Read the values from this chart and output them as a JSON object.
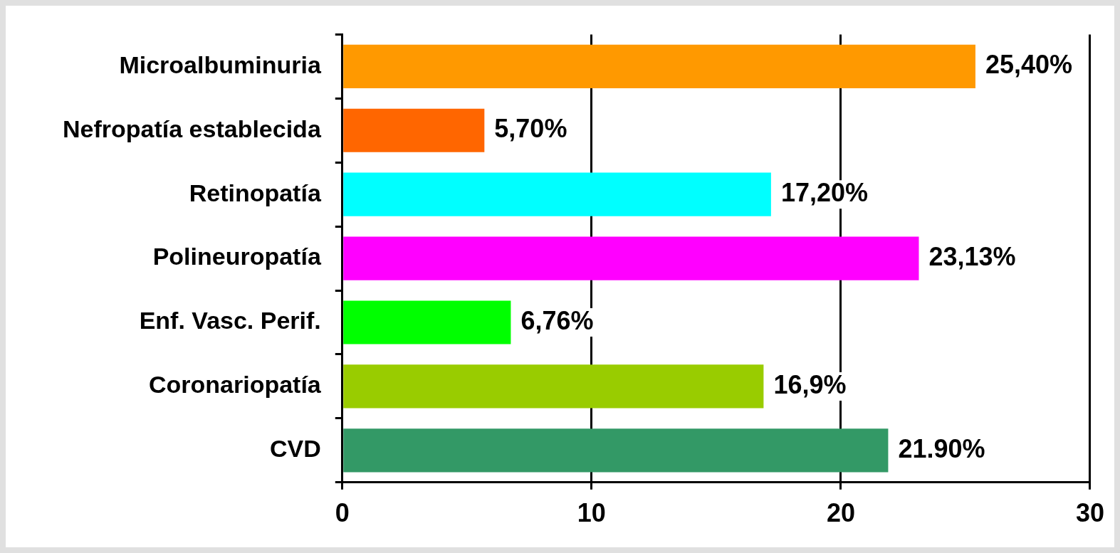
{
  "chart_data": {
    "type": "bar",
    "orientation": "horizontal",
    "categories": [
      "Microalbuminuria",
      "Nefropatía establecida",
      "Retinopatía",
      "Polineuropatía",
      "Enf. Vasc. Perif.",
      "Coronariopatía",
      "CVD"
    ],
    "values": [
      25.4,
      5.7,
      17.2,
      23.13,
      6.76,
      16.9,
      21.9
    ],
    "value_labels": [
      "25,40%",
      "5,70%",
      "17,20%",
      "23,13%",
      "6,76%",
      "16,9%",
      "21.90%"
    ],
    "colors": [
      "#ff9900",
      "#ff6600",
      "#00ffff",
      "#ff00ff",
      "#00ff00",
      "#99cc00",
      "#339966"
    ],
    "xlim": [
      0,
      30
    ],
    "xticks": [
      0,
      10,
      20,
      30
    ],
    "grid": "x",
    "legend": false
  }
}
